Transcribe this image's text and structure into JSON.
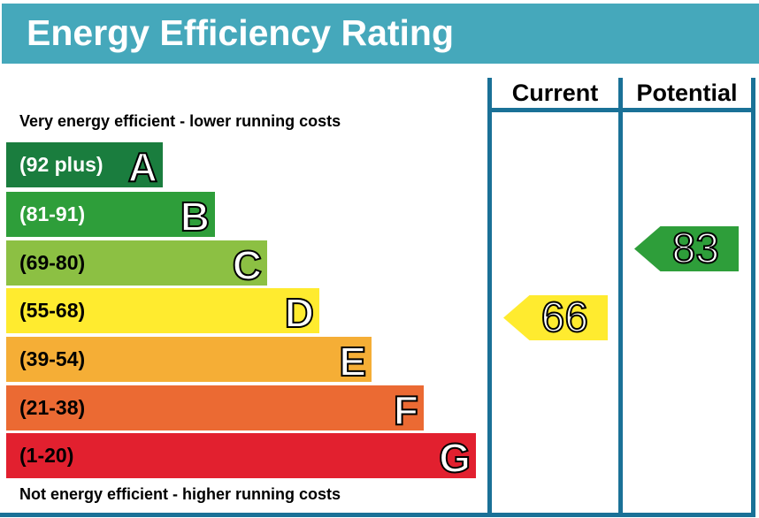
{
  "title": "Energy Efficiency Rating",
  "columns": {
    "current": "Current",
    "potential": "Potential"
  },
  "top_note": "Very energy efficient - lower running costs",
  "bottom_note": "Not energy efficient - higher running costs",
  "chart_data": {
    "type": "bar",
    "bands": [
      {
        "letter": "A",
        "range": "(92 plus)",
        "min": 92,
        "max": 100,
        "color": "#1a7d3e",
        "text_color": "#ffffff"
      },
      {
        "letter": "B",
        "range": "(81-91)",
        "min": 81,
        "max": 91,
        "color": "#2e9e3a",
        "text_color": "#ffffff"
      },
      {
        "letter": "C",
        "range": "(69-80)",
        "min": 69,
        "max": 80,
        "color": "#8cc043",
        "text_color": "#000000"
      },
      {
        "letter": "D",
        "range": "(55-68)",
        "min": 55,
        "max": 68,
        "color": "#ffeb2f",
        "text_color": "#000000"
      },
      {
        "letter": "E",
        "range": "(39-54)",
        "min": 39,
        "max": 54,
        "color": "#f5ae36",
        "text_color": "#000000"
      },
      {
        "letter": "F",
        "range": "(21-38)",
        "min": 21,
        "max": 38,
        "color": "#eb6a33",
        "text_color": "#000000"
      },
      {
        "letter": "G",
        "range": "(1-20)",
        "min": 1,
        "max": 20,
        "color": "#e2202f",
        "text_color": "#000000"
      }
    ],
    "current": {
      "value": "66",
      "color": "#ffeb2f"
    },
    "potential": {
      "value": "83",
      "color": "#2e9e3a"
    }
  }
}
